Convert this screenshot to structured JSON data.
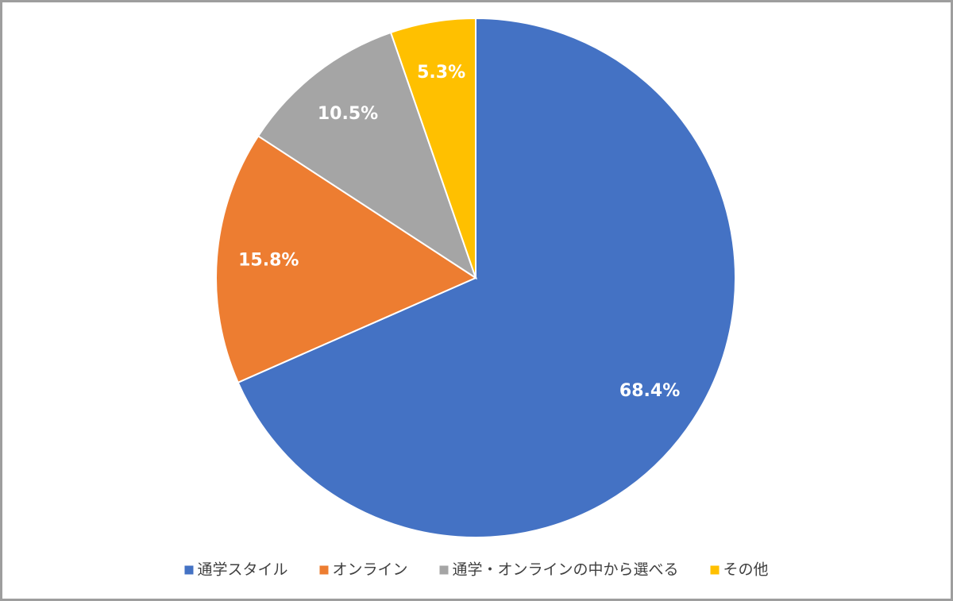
{
  "chart_data": {
    "type": "pie",
    "categories": [
      "通学スタイル",
      "オンライン",
      "通学・オンラインの中から選べる",
      "その他"
    ],
    "values": [
      68.4,
      15.8,
      10.5,
      5.3
    ],
    "value_labels": [
      "68.4%",
      "15.8%",
      "10.5%",
      "5.3%"
    ],
    "colors": [
      "#4472c4",
      "#ed7d31",
      "#a5a5a5",
      "#ffc000"
    ],
    "legend": "bottom"
  }
}
